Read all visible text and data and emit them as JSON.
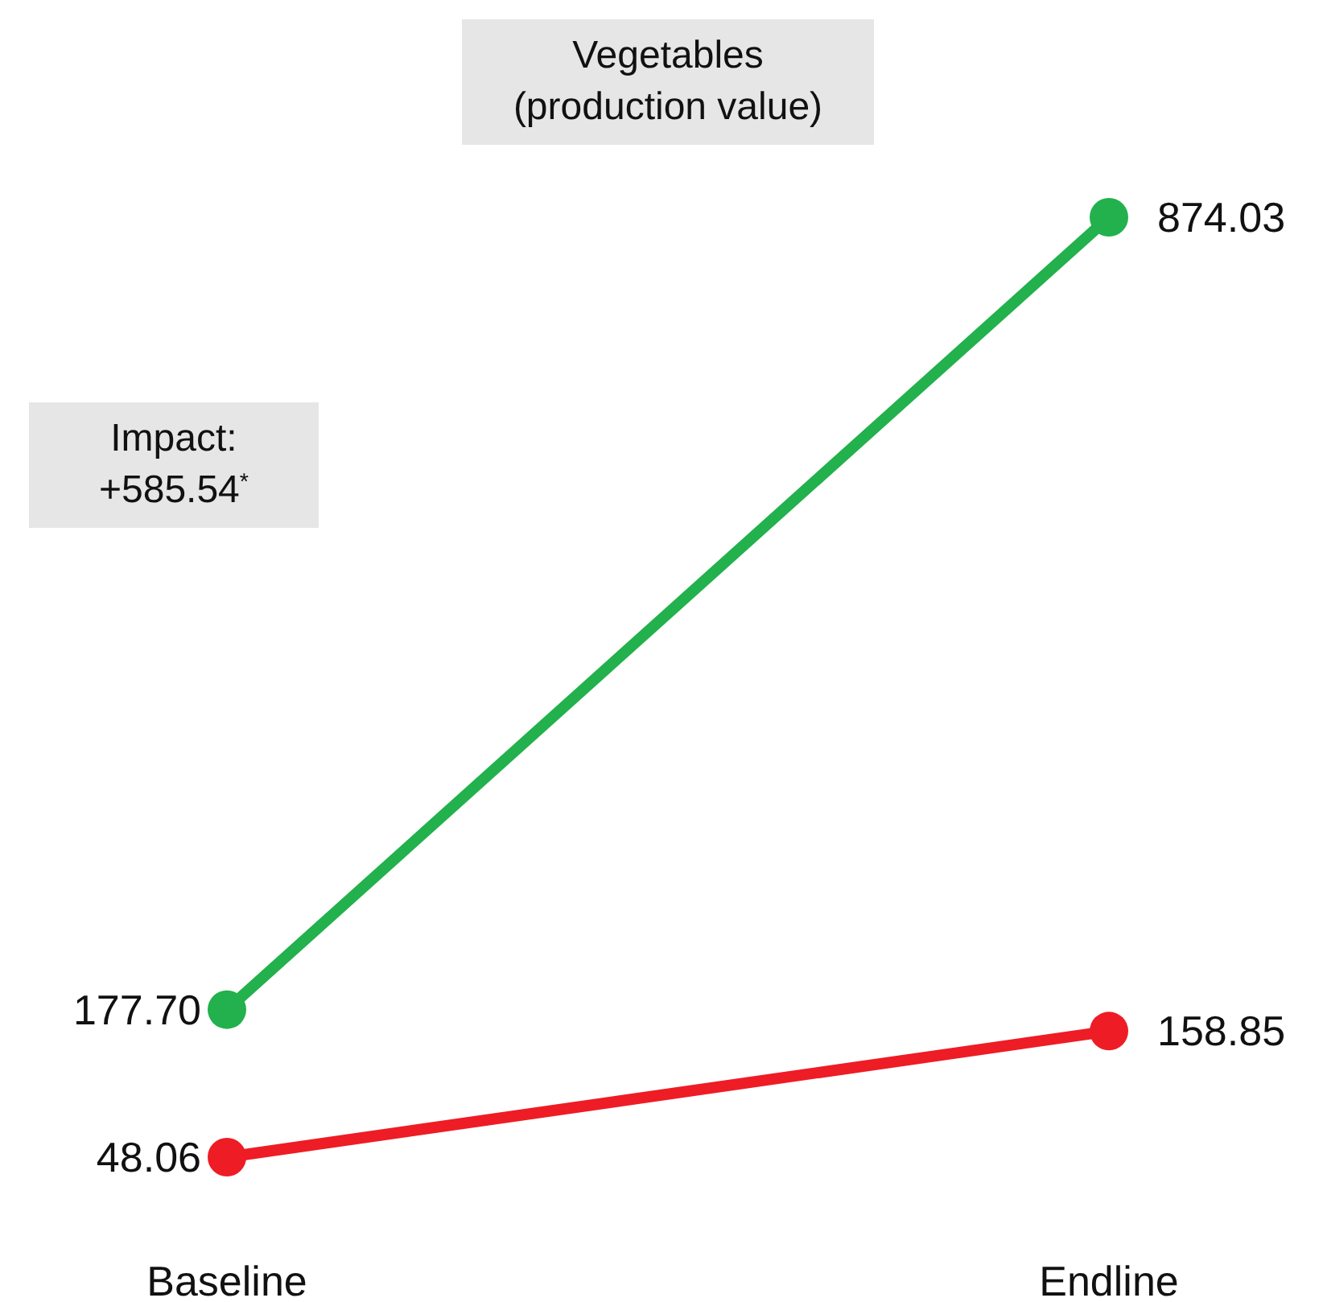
{
  "chart_data": {
    "type": "line",
    "title": "Vegetables\n(production value)",
    "categories": [
      "Baseline",
      "Endline"
    ],
    "series": [
      {
        "color": "#22b14c",
        "values": [
          177.7,
          874.03
        ],
        "value_labels": [
          "177.70",
          "874.03"
        ]
      },
      {
        "color": "#ee1c25",
        "values": [
          48.06,
          158.85
        ],
        "value_labels": [
          "48.06",
          "158.85"
        ]
      }
    ],
    "annotations": [
      "Impact:\n+585.54$^{*}$"
    ],
    "marker": "circle",
    "line_style": "solid",
    "tick_labels": "x"
  }
}
